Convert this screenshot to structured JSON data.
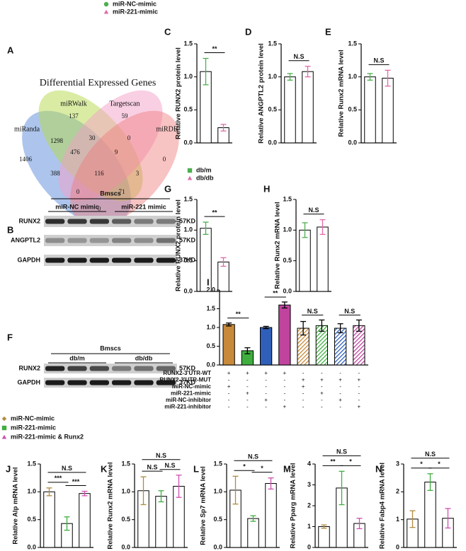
{
  "legends": [
    {
      "items": [
        {
          "name": "miR-NC-mimic",
          "color": "#4caf50",
          "marker": "circle"
        },
        {
          "name": "miR-221-mimic",
          "color": "#e06aa8",
          "marker": "triangle"
        }
      ]
    },
    {
      "items": [
        {
          "name": "db/m",
          "color": "#4caf50",
          "marker": "square"
        },
        {
          "name": "db/db",
          "color": "#e06aa8",
          "marker": "triangle"
        }
      ]
    },
    {
      "items": [
        {
          "name": "miR-NC-mimic",
          "color": "#b08a40",
          "marker": "diamond"
        },
        {
          "name": "miR-221-mimic",
          "color": "#3fae3f",
          "marker": "square"
        },
        {
          "name": "miR-221-mimic & Runx2",
          "color": "#cf4fb0",
          "marker": "triangle"
        }
      ]
    }
  ],
  "venn": {
    "panel": "A",
    "title": "Differential Expressed Genes",
    "sets": [
      "miRanda",
      "miRWalk",
      "Targetscan",
      "miRDB"
    ],
    "regions": [
      "137",
      "59",
      "1298",
      "30",
      "0",
      "1406",
      "476",
      "9",
      "0",
      "116",
      "388",
      "0",
      "71",
      "3",
      "0"
    ]
  },
  "blots": [
    {
      "panel": "B",
      "header": "Bmscs",
      "groups": [
        "miR-NC mimic",
        "miR-221 mimic"
      ],
      "rows": [
        {
          "label": "RUNX2",
          "size": "57KD"
        },
        {
          "label": "ANGPTL2",
          "size": "57KD"
        },
        {
          "label": "GAPDH",
          "size": "37KD"
        }
      ]
    },
    {
      "panel": "F",
      "header": "Bmscs",
      "groups": [
        "db/m",
        "db/db"
      ],
      "rows": [
        {
          "label": "RUNX2",
          "size": "57KD"
        },
        {
          "label": "GAPDH",
          "size": "37KD"
        }
      ]
    }
  ],
  "chart_data": [
    {
      "type": "bar",
      "panel": "C",
      "ylabel": "Relative RUNX2 protein level",
      "values": [
        1.08,
        0.23
      ],
      "errors": [
        0.2,
        0.05
      ],
      "colors": [
        "#4caf50",
        "#e06aa8"
      ],
      "bar_fill": "#ffffff",
      "ylim": [
        0,
        1.5
      ],
      "yticks": [
        {
          "value": 0,
          "label": "0.0"
        },
        {
          "value": 0.5,
          "label": "0.5"
        },
        {
          "value": 1,
          "label": "1.0"
        },
        {
          "value": 1.5,
          "label": "1.5"
        }
      ],
      "annotations": [
        "**"
      ]
    },
    {
      "type": "bar",
      "panel": "D",
      "ylabel": "Relative ANGPTL2 protein level",
      "values": [
        1.0,
        1.08
      ],
      "errors": [
        0.05,
        0.08
      ],
      "colors": [
        "#4caf50",
        "#e06aa8"
      ],
      "bar_fill": "#ffffff",
      "ylim": [
        0,
        1.5
      ],
      "yticks": [
        {
          "value": 0,
          "label": "0.0"
        },
        {
          "value": 0.5,
          "label": "0.5"
        },
        {
          "value": 1,
          "label": "1.0"
        },
        {
          "value": 1.5,
          "label": "1.5"
        }
      ],
      "annotations": [
        "N.S"
      ]
    },
    {
      "type": "bar",
      "panel": "E",
      "ylabel": "Relative Runx2 mRNA level",
      "values": [
        1.0,
        0.98
      ],
      "errors": [
        0.05,
        0.12
      ],
      "colors": [
        "#4caf50",
        "#e06aa8"
      ],
      "bar_fill": "#ffffff",
      "ylim": [
        0,
        1.5
      ],
      "yticks": [
        {
          "value": 0,
          "label": "0.0"
        },
        {
          "value": 0.5,
          "label": "0.5"
        },
        {
          "value": 1,
          "label": "1.0"
        },
        {
          "value": 1.5,
          "label": "1.5"
        }
      ],
      "annotations": [
        "N.S"
      ]
    },
    {
      "type": "bar",
      "panel": "G",
      "ylabel": "Relative RUNX2 protein level",
      "values": [
        1.03,
        0.48
      ],
      "errors": [
        0.1,
        0.07
      ],
      "colors": [
        "#4caf50",
        "#e06aa8"
      ],
      "bar_fill": "#ffffff",
      "ylim": [
        0,
        1.5
      ],
      "yticks": [
        {
          "value": 0,
          "label": "0.0"
        },
        {
          "value": 0.5,
          "label": "0.5"
        },
        {
          "value": 1,
          "label": "1.0"
        },
        {
          "value": 1.5,
          "label": "1.5"
        }
      ],
      "annotations": [
        "**"
      ]
    },
    {
      "type": "bar",
      "panel": "H",
      "ylabel": "Relative Runx2 mRNA level",
      "values": [
        1.0,
        1.05
      ],
      "errors": [
        0.12,
        0.12
      ],
      "colors": [
        "#4caf50",
        "#e06aa8"
      ],
      "bar_fill": "#ffffff",
      "ylim": [
        0,
        1.5
      ],
      "yticks": [
        {
          "value": 0,
          "label": "0.0"
        },
        {
          "value": 0.5,
          "label": "0.5"
        },
        {
          "value": 1,
          "label": "1.0"
        },
        {
          "value": 1.5,
          "label": "1.5"
        }
      ],
      "annotations": [
        "N.S"
      ]
    },
    {
      "type": "bar",
      "panel": "I",
      "values": [
        1.08,
        0.38,
        1.0,
        1.6,
        0.98,
        1.05,
        0.98,
        1.05
      ],
      "errors": [
        0.04,
        0.08,
        0.03,
        0.08,
        0.18,
        0.15,
        0.12,
        0.15
      ],
      "colors": [
        "#c88a3a",
        "#3fae3f",
        "#2f5fb8",
        "#c0449e",
        "#c88a3a",
        "#3fae3f",
        "#2f5fb8",
        "#c0449e"
      ],
      "hatched": [
        false,
        false,
        false,
        false,
        true,
        true,
        true,
        true
      ],
      "ylim": [
        0,
        2
      ],
      "yticks": [
        {
          "value": 0,
          "label": "0.0"
        },
        {
          "value": 0.5,
          "label": "0.5"
        },
        {
          "value": 1,
          "label": "1.0"
        },
        {
          "value": 1.5,
          "label": "1.5"
        },
        {
          "value": 2,
          "label": "2.0"
        }
      ],
      "annotations": [
        "**",
        "**",
        "N.S",
        "N.S"
      ],
      "conditions": [
        {
          "label": "RUNX2-3'UTR-WT",
          "signs": [
            "+",
            "+",
            "+",
            "+",
            "-",
            "-",
            "-",
            "-"
          ]
        },
        {
          "label": "RUNX2-3'UTR-MUT",
          "signs": [
            "-",
            "-",
            "-",
            "-",
            "+",
            "+",
            "+",
            "+"
          ]
        },
        {
          "label": "miR-NC-mimic",
          "signs": [
            "+",
            "-",
            "-",
            "-",
            "+",
            "-",
            "-",
            "-"
          ]
        },
        {
          "label": "miR-221-mimic",
          "signs": [
            "-",
            "+",
            "-",
            "-",
            "-",
            "+",
            "-",
            "-"
          ]
        },
        {
          "label": "miR-NC-inhibitor",
          "signs": [
            "-",
            "-",
            "+",
            "-",
            "-",
            "-",
            "+",
            "-"
          ]
        },
        {
          "label": "miR-221-inhibitor",
          "signs": [
            "-",
            "-",
            "-",
            "+",
            "-",
            "-",
            "-",
            "+"
          ]
        }
      ]
    },
    {
      "type": "bar",
      "panel": "J",
      "ylabel": "Relative Alp mRNA level",
      "values": [
        1.0,
        0.43,
        0.97
      ],
      "errors": [
        0.07,
        0.12,
        0.04
      ],
      "colors": [
        "#b08a40",
        "#3fae3f",
        "#cf4fb0"
      ],
      "bar_fill": "#ffffff",
      "ylim": [
        0,
        1.5
      ],
      "yticks": [
        {
          "value": 0,
          "label": "0.0"
        },
        {
          "value": 0.5,
          "label": "0.5"
        },
        {
          "value": 1,
          "label": "1.0"
        },
        {
          "value": 1.5,
          "label": "1.5"
        }
      ],
      "annotations": [
        "N.S",
        "***",
        "***"
      ]
    },
    {
      "type": "bar",
      "panel": "K",
      "ylabel": "Relative Runx2 mRNA level",
      "values": [
        1.02,
        0.92,
        1.1
      ],
      "errors": [
        0.25,
        0.1,
        0.2
      ],
      "colors": [
        "#b08a40",
        "#3fae3f",
        "#cf4fb0"
      ],
      "bar_fill": "#ffffff",
      "ylim": [
        0,
        1.5
      ],
      "yticks": [
        {
          "value": 0,
          "label": "0.0"
        },
        {
          "value": 0.5,
          "label": "0.5"
        },
        {
          "value": 1,
          "label": "1.0"
        },
        {
          "value": 1.5,
          "label": "1.5"
        }
      ],
      "annotations": [
        "N.S",
        "N.S",
        "N.S"
      ]
    },
    {
      "type": "bar",
      "panel": "L",
      "ylabel": "Relative Sp7 mRNA level",
      "values": [
        1.03,
        0.52,
        1.15
      ],
      "errors": [
        0.25,
        0.05,
        0.1
      ],
      "colors": [
        "#b08a40",
        "#3fae3f",
        "#cf4fb0"
      ],
      "bar_fill": "#ffffff",
      "ylim": [
        0,
        1.5
      ],
      "yticks": [
        {
          "value": 0,
          "label": "0.0"
        },
        {
          "value": 0.5,
          "label": "0.5"
        },
        {
          "value": 1,
          "label": "1.0"
        },
        {
          "value": 1.5,
          "label": "1.5"
        }
      ],
      "annotations": [
        "N.S",
        "*",
        "*"
      ]
    },
    {
      "type": "bar",
      "panel": "M",
      "ylabel": "Relative Pparg mRNA level",
      "values": [
        1.0,
        2.85,
        1.15
      ],
      "errors": [
        0.08,
        0.8,
        0.25
      ],
      "colors": [
        "#b08a40",
        "#3fae3f",
        "#cf4fb0"
      ],
      "bar_fill": "#ffffff",
      "ylim": [
        0,
        4
      ],
      "yticks": [
        0,
        1,
        2,
        3,
        4
      ],
      "annotations": [
        "N.S",
        "**",
        "*"
      ]
    },
    {
      "type": "bar",
      "panel": "N",
      "ylabel": "Relative Fabp4 mRNA level",
      "values": [
        1.02,
        2.35,
        1.05
      ],
      "errors": [
        0.3,
        0.3,
        0.35
      ],
      "colors": [
        "#b08a40",
        "#3fae3f",
        "#cf4fb0"
      ],
      "bar_fill": "#ffffff",
      "ylim": [
        0,
        3
      ],
      "yticks": [
        0,
        1,
        2,
        3
      ],
      "annotations": [
        "N.S",
        "*",
        "*"
      ]
    }
  ]
}
